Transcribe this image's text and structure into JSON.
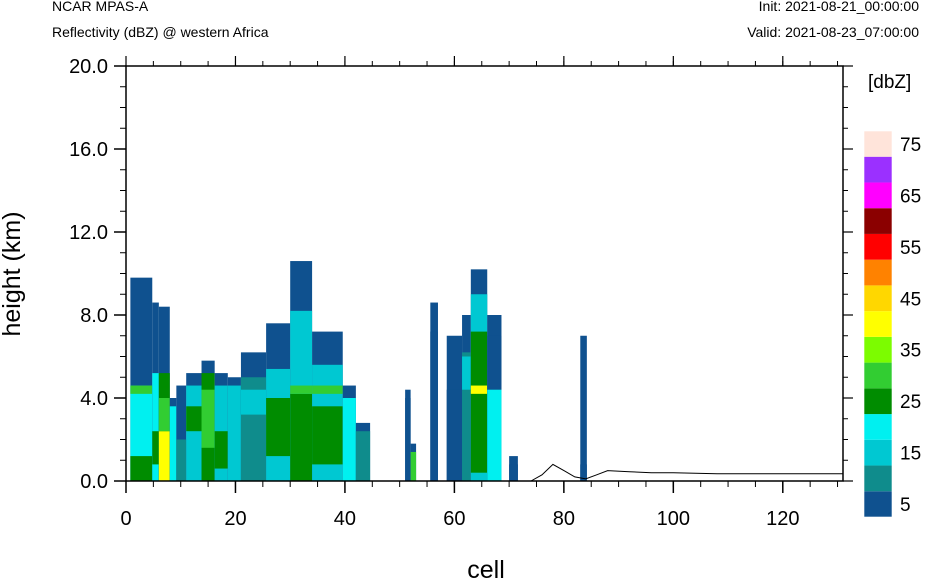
{
  "header": {
    "model": "NCAR MPAS-A",
    "field": "Reflectivity (dBZ) @ western Africa",
    "init": "Init: 2021-08-21_00:00:00",
    "valid": "Valid: 2021-08-23_07:00:00"
  },
  "chart_data": {
    "type": "heatmap",
    "xlabel": "cell",
    "ylabel": "height (km)",
    "xlim": [
      0,
      131
    ],
    "ylim": [
      0,
      20
    ],
    "x_ticks": [
      0,
      20,
      40,
      60,
      80,
      100,
      120
    ],
    "y_ticks": [
      0,
      4,
      8,
      12,
      16,
      20
    ],
    "y_tick_labels": [
      "0.0",
      "4.0",
      "8.0",
      "12.0",
      "16.0",
      "20.0"
    ],
    "colorbar": {
      "unit": "[dbZ]",
      "levels": [
        5,
        10,
        15,
        20,
        25,
        30,
        35,
        40,
        45,
        50,
        55,
        60,
        65,
        70,
        75
      ],
      "labels": [
        "5",
        "15",
        "25",
        "35",
        "45",
        "55",
        "65",
        "75"
      ],
      "colors": [
        "#0f518f",
        "#0f8c8c",
        "#00c8d2",
        "#00f0f0",
        "#008c00",
        "#32cd32",
        "#7cfc00",
        "#ffff00",
        "#ffd700",
        "#ff8200",
        "#ff0000",
        "#8b0000",
        "#ff00ff",
        "#9b30ff",
        "#ffe4da"
      ]
    },
    "echo_columns": [
      {
        "x0": 0.8,
        "x1": 4.8,
        "top": 9.8,
        "cores": [
          {
            "from": 0,
            "to": 4.6,
            "dbz": 22
          },
          {
            "from": 0,
            "to": 1.2,
            "dbz": 26
          },
          {
            "from": 4.2,
            "to": 4.6,
            "dbz": 34
          }
        ]
      },
      {
        "x0": 4.8,
        "x1": 6.0,
        "top": 8.6,
        "cores": [
          {
            "from": 0,
            "to": 5.2,
            "dbz": 22
          },
          {
            "from": 0.8,
            "to": 2.4,
            "dbz": 26
          }
        ]
      },
      {
        "x0": 6.0,
        "x1": 8.0,
        "top": 8.4,
        "cores": [
          {
            "from": 0,
            "to": 5.2,
            "dbz": 26
          },
          {
            "from": 0,
            "to": 2.4,
            "dbz": 42
          },
          {
            "from": 2.4,
            "to": 4.0,
            "dbz": 32
          }
        ]
      },
      {
        "x0": 8.0,
        "x1": 9.2,
        "top": 4.0,
        "cores": [
          {
            "from": 0,
            "to": 3.6,
            "dbz": 22
          }
        ]
      },
      {
        "x0": 9.2,
        "x1": 11.0,
        "top": 4.6,
        "cores": [
          {
            "from": 0,
            "to": 2.0,
            "dbz": 12
          }
        ]
      },
      {
        "x0": 11.0,
        "x1": 13.8,
        "top": 5.2,
        "cores": [
          {
            "from": 0,
            "to": 4.6,
            "dbz": 17
          },
          {
            "from": 2.4,
            "to": 3.6,
            "dbz": 26
          }
        ]
      },
      {
        "x0": 13.8,
        "x1": 16.2,
        "top": 5.8,
        "cores": [
          {
            "from": 0,
            "to": 5.2,
            "dbz": 27
          },
          {
            "from": 1.6,
            "to": 4.4,
            "dbz": 32
          }
        ]
      },
      {
        "x0": 16.2,
        "x1": 18.6,
        "top": 5.2,
        "cores": [
          {
            "from": 0,
            "to": 4.6,
            "dbz": 17
          },
          {
            "from": 0.6,
            "to": 2.4,
            "dbz": 26
          }
        ]
      },
      {
        "x0": 18.6,
        "x1": 21.0,
        "top": 5.0,
        "cores": [
          {
            "from": 0,
            "to": 4.6,
            "dbz": 17
          }
        ]
      },
      {
        "x0": 21.0,
        "x1": 25.6,
        "top": 6.2,
        "cores": [
          {
            "from": 0,
            "to": 5.0,
            "dbz": 12
          },
          {
            "from": 3.2,
            "to": 4.4,
            "dbz": 17
          }
        ]
      },
      {
        "x0": 25.6,
        "x1": 30.0,
        "top": 7.6,
        "cores": [
          {
            "from": 0,
            "to": 5.4,
            "dbz": 17
          },
          {
            "from": 1.2,
            "to": 4.0,
            "dbz": 26
          }
        ]
      },
      {
        "x0": 30.0,
        "x1": 34.0,
        "top": 10.6,
        "cores": [
          {
            "from": 0,
            "to": 8.2,
            "dbz": 18
          },
          {
            "from": 0,
            "to": 4.2,
            "dbz": 26
          },
          {
            "from": 4.2,
            "to": 4.6,
            "dbz": 34
          }
        ]
      },
      {
        "x0": 34.0,
        "x1": 39.6,
        "top": 7.2,
        "cores": [
          {
            "from": 0,
            "to": 5.6,
            "dbz": 18
          },
          {
            "from": 0.8,
            "to": 3.6,
            "dbz": 26
          },
          {
            "from": 4.2,
            "to": 4.6,
            "dbz": 34
          }
        ]
      },
      {
        "x0": 39.6,
        "x1": 42.0,
        "top": 4.6,
        "cores": [
          {
            "from": 0,
            "to": 4.0,
            "dbz": 22
          }
        ]
      },
      {
        "x0": 42.0,
        "x1": 44.6,
        "top": 2.8,
        "cores": [
          {
            "from": 0,
            "to": 2.4,
            "dbz": 14
          }
        ]
      },
      {
        "x0": 51.0,
        "x1": 52.0,
        "top": 4.4,
        "cores": [
          {
            "from": 0,
            "to": 4.0,
            "dbz": 6
          }
        ]
      },
      {
        "x0": 52.0,
        "x1": 53.0,
        "top": 1.8,
        "cores": [
          {
            "from": 0,
            "to": 1.4,
            "dbz": 30
          }
        ]
      },
      {
        "x0": 55.6,
        "x1": 57.0,
        "top": 8.6,
        "cores": [
          {
            "from": 0,
            "to": 7.2,
            "dbz": 6
          }
        ]
      },
      {
        "x0": 58.6,
        "x1": 61.4,
        "top": 7.0,
        "cores": [
          {
            "from": 0,
            "to": 4.4,
            "dbz": 8
          }
        ]
      },
      {
        "x0": 61.4,
        "x1": 63.0,
        "top": 8.0,
        "cores": [
          {
            "from": 0,
            "to": 6.2,
            "dbz": 10
          },
          {
            "from": 4.4,
            "to": 6.0,
            "dbz": 17
          }
        ]
      },
      {
        "x0": 63.0,
        "x1": 66.0,
        "top": 10.2,
        "cores": [
          {
            "from": 0,
            "to": 9.0,
            "dbz": 18
          },
          {
            "from": 0.4,
            "to": 7.2,
            "dbz": 27
          },
          {
            "from": 4.2,
            "to": 4.6,
            "dbz": 42
          }
        ]
      },
      {
        "x0": 66.0,
        "x1": 68.6,
        "top": 8.0,
        "cores": [
          {
            "from": 0,
            "to": 7.0,
            "dbz": 6
          },
          {
            "from": 0,
            "to": 4.4,
            "dbz": 20
          }
        ]
      },
      {
        "x0": 70.0,
        "x1": 71.6,
        "top": 1.2,
        "cores": [
          {
            "from": 0,
            "to": 0.8,
            "dbz": 6
          }
        ]
      },
      {
        "x0": 83.0,
        "x1": 84.2,
        "top": 7.0,
        "cores": [
          {
            "from": 0,
            "to": 0.8,
            "dbz": 6
          }
        ]
      }
    ],
    "terrain": [
      [
        74,
        0
      ],
      [
        76,
        0.3
      ],
      [
        78,
        0.8
      ],
      [
        80,
        0.5
      ],
      [
        82,
        0.2
      ],
      [
        84,
        0.1
      ],
      [
        86,
        0.3
      ],
      [
        88,
        0.5
      ],
      [
        92,
        0.45
      ],
      [
        96,
        0.4
      ],
      [
        100,
        0.4
      ],
      [
        108,
        0.35
      ],
      [
        116,
        0.35
      ],
      [
        124,
        0.35
      ],
      [
        131,
        0.35
      ]
    ]
  }
}
